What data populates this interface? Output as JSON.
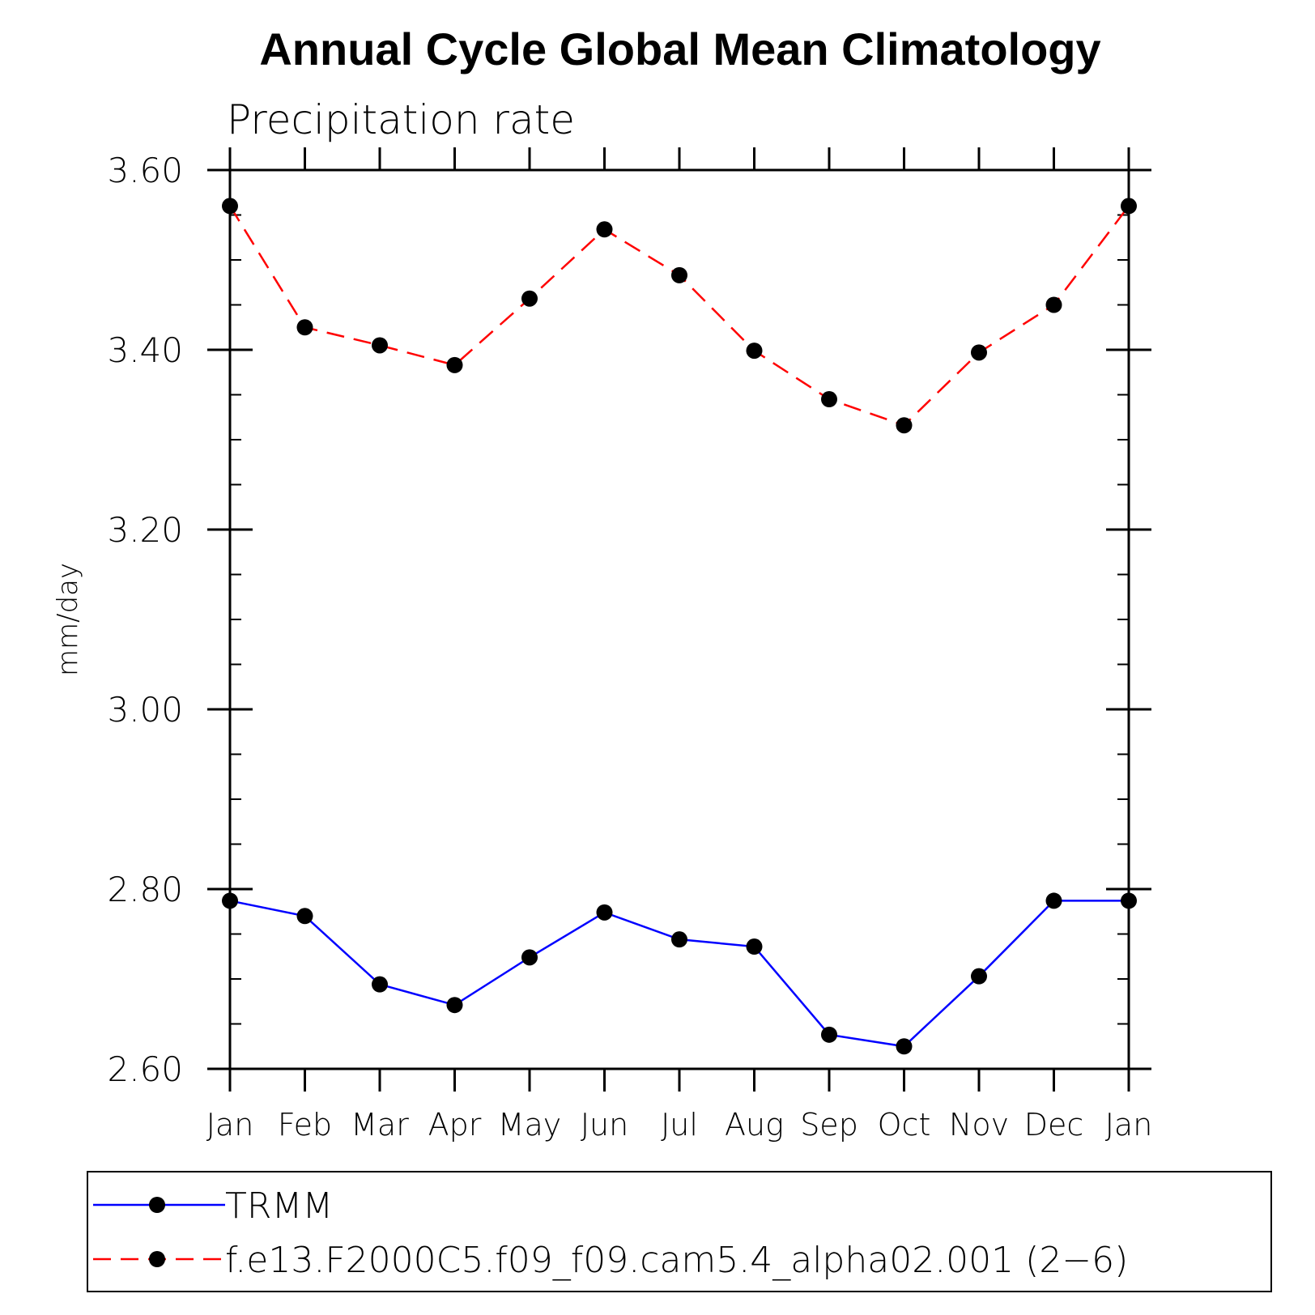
{
  "chart_data": {
    "type": "line",
    "title": "Annual Cycle Global Mean Climatology",
    "subtitle": "Precipitation rate",
    "xlabel": "",
    "ylabel": "mm/day",
    "categories": [
      "Jan",
      "Feb",
      "Mar",
      "Apr",
      "May",
      "Jun",
      "Jul",
      "Aug",
      "Sep",
      "Oct",
      "Nov",
      "Dec",
      "Jan"
    ],
    "ylim": [
      2.6,
      3.6
    ],
    "yticks": [
      2.6,
      2.8,
      3.0,
      3.2,
      3.4,
      3.6
    ],
    "ytick_labels": [
      "2.60",
      "2.80",
      "3.00",
      "3.20",
      "3.40",
      "3.60"
    ],
    "y_minor_step": 0.05,
    "series": [
      {
        "name": "TRMM",
        "color": "#0000ff",
        "style": "solid",
        "marker": "circle",
        "values": [
          2.787,
          2.77,
          2.694,
          2.671,
          2.724,
          2.774,
          2.744,
          2.736,
          2.638,
          2.625,
          2.703,
          2.787,
          2.787
        ]
      },
      {
        "name": "f.e13.F2000C5.f09_f09.cam5.4_alpha02.001 (2-6)",
        "color": "#ff0000",
        "style": "dashed",
        "marker": "circle",
        "values": [
          3.56,
          3.425,
          3.405,
          3.383,
          3.457,
          3.534,
          3.483,
          3.399,
          3.345,
          3.316,
          3.397,
          3.45,
          3.56
        ]
      }
    ],
    "legend": {
      "position": "bottom",
      "entries": [
        "TRMM",
        "f.e13.F2000C5.f09_f09.cam5.4_alpha02.001 (2−6)"
      ]
    },
    "grid": false
  }
}
